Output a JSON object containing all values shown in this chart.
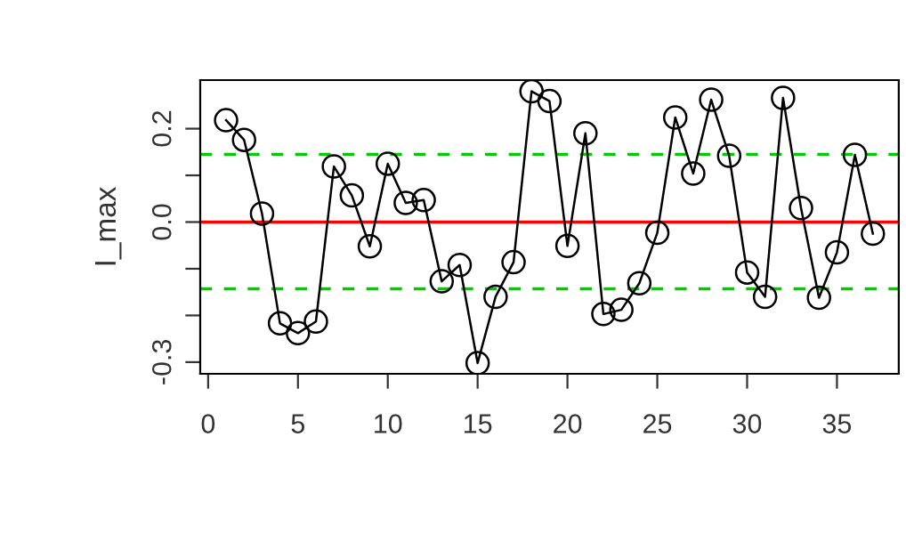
{
  "chart_data": {
    "type": "line",
    "ylabel": "I_max",
    "x": [
      1,
      2,
      3,
      4,
      5,
      6,
      7,
      8,
      9,
      10,
      11,
      12,
      13,
      14,
      15,
      16,
      17,
      18,
      19,
      20,
      21,
      22,
      23,
      24,
      25,
      26,
      27,
      28,
      29,
      30,
      31,
      32,
      33,
      34,
      35,
      36,
      37
    ],
    "series": [
      {
        "color": "#000000",
        "values": [
          0.218,
          0.176,
          0.018,
          -0.217,
          -0.238,
          -0.213,
          0.119,
          0.057,
          -0.052,
          0.125,
          0.041,
          0.047,
          -0.127,
          -0.092,
          -0.302,
          -0.16,
          -0.086,
          0.28,
          0.259,
          -0.051,
          0.19,
          -0.197,
          -0.188,
          -0.131,
          -0.023,
          0.224,
          0.104,
          0.262,
          0.142,
          -0.108,
          -0.16,
          0.266,
          0.03,
          -0.162,
          -0.065,
          0.144,
          -0.025
        ]
      }
    ],
    "marker": "circle",
    "line_style": "solid",
    "xlim": [
      -0.44,
      38.44
    ],
    "xticks": [
      0,
      5,
      10,
      15,
      20,
      25,
      30,
      35
    ],
    "ylim": [
      -0.325,
      0.304
    ],
    "yticks": [
      -0.3,
      {
        "value": -0.2,
        "label": null
      },
      {
        "value": -0.1,
        "label": null
      },
      {
        "value": 0.0,
        "label": "0.0"
      },
      {
        "value": 0.1,
        "label": null
      },
      0.2
    ],
    "ref_lines": [
      {
        "axis": "y",
        "value": 0,
        "color": "#ff0000",
        "line_style": "solid"
      },
      {
        "axis": "y",
        "value": 0.145,
        "color": "#00cc00",
        "line_style": "dashed"
      },
      {
        "axis": "y",
        "value": -0.143,
        "color": "#00cc00",
        "line_style": "dashed"
      }
    ],
    "grid": false,
    "legend": false
  }
}
